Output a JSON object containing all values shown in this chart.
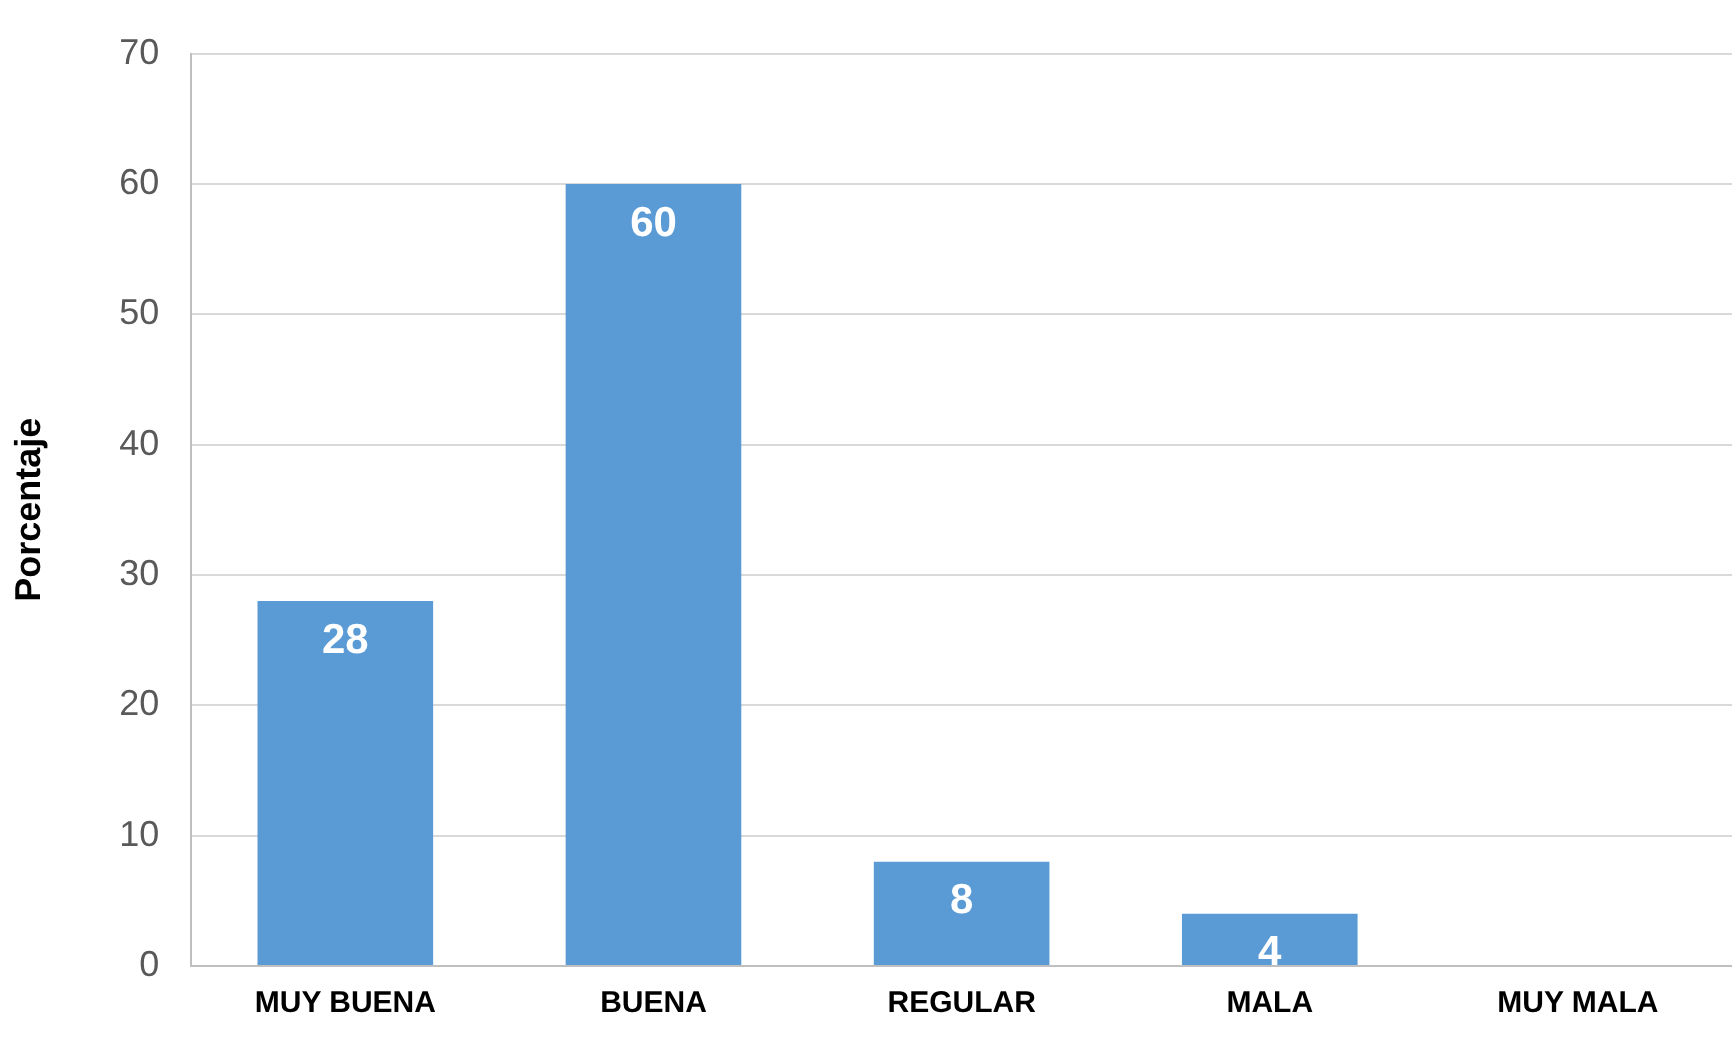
{
  "chart_data": {
    "type": "bar",
    "ylabel": "Porcentaje",
    "categories": [
      "MUY BUENA",
      "BUENA",
      "REGULAR",
      "MALA",
      "MUY MALA"
    ],
    "values": [
      28,
      60,
      8,
      4,
      0
    ],
    "value_labels": [
      "28",
      "60",
      "8",
      "4",
      null
    ],
    "color": "#5b9bd5",
    "ylim": [
      0,
      70
    ],
    "yticks": [
      0,
      10,
      20,
      30,
      40,
      50,
      60,
      70
    ],
    "grid": "y",
    "legend": false
  }
}
